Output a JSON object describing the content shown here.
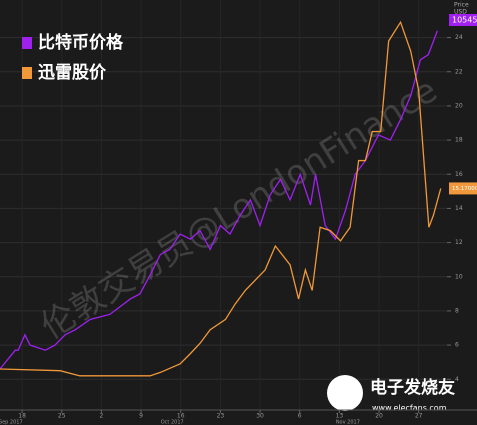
{
  "chart_data": {
    "type": "line",
    "y_axis_title": "Price",
    "y_axis_unit": "USD",
    "watermark": "伦敦交易员@LondonFinance",
    "logo_text": "电子发烧友",
    "logo_url": "www.elecfans.com",
    "legend_position": "top-left",
    "grid": true,
    "background": "#1b1b1b",
    "xlim": [
      14.1,
      93
    ],
    "ylim": [
      2.2,
      26.2
    ],
    "xticks": [
      {
        "value": 18,
        "label": "18"
      },
      {
        "value": 25,
        "label": "25"
      },
      {
        "value": 32,
        "label": "2"
      },
      {
        "value": 39,
        "label": "9"
      },
      {
        "value": 46,
        "label": "16"
      },
      {
        "value": 53,
        "label": "23"
      },
      {
        "value": 60,
        "label": "30"
      },
      {
        "value": 67,
        "label": "6"
      },
      {
        "value": 74,
        "label": "13"
      },
      {
        "value": 81,
        "label": "20"
      },
      {
        "value": 88,
        "label": "27"
      }
    ],
    "month_ticks": [
      {
        "value": 16,
        "label": "Sep 2017"
      },
      {
        "value": 44.5,
        "label": "Oct 2017"
      },
      {
        "value": 75.5,
        "label": "Nov 2017"
      }
    ],
    "yticks": [
      4,
      6,
      8,
      10,
      12,
      14,
      16,
      18,
      20,
      22,
      24
    ],
    "series": [
      {
        "name": "比特币价格",
        "color": "#a020f0",
        "end_label": "10545",
        "x": [
          14.1,
          16.8,
          17.3,
          18.5,
          19.4,
          22.1,
          23.8,
          25.6,
          27.4,
          30,
          33.5,
          37.1,
          38.8,
          40.6,
          42.4,
          44.1,
          45.9,
          47.7,
          49.4,
          51.2,
          53,
          54.7,
          56.5,
          58.3,
          60,
          61.8,
          63.6,
          65.3,
          67.1,
          68.9,
          69.8,
          71.5,
          73.3,
          75.1,
          76.8,
          78.6,
          80.9,
          83,
          84.8,
          86.6,
          88.3,
          89.7,
          91.3
        ],
        "values": [
          4.6,
          5.7,
          5.7,
          6.6,
          6.0,
          5.7,
          6.0,
          6.6,
          6.9,
          7.5,
          7.8,
          8.7,
          9.0,
          10.1,
          11.3,
          11.6,
          12.5,
          12.2,
          12.7,
          11.6,
          13.0,
          12.5,
          13.6,
          14.5,
          13.0,
          14.8,
          15.7,
          14.5,
          16.0,
          14.2,
          16.0,
          13.0,
          12.2,
          13.9,
          16.0,
          16.8,
          18.3,
          18.0,
          19.2,
          20.6,
          22.7,
          23.0,
          24.4
        ]
      },
      {
        "name": "迅雷股价",
        "color": "#f0983a",
        "end_label": "15.170000",
        "x": [
          14.1,
          24.7,
          28.2,
          40.6,
          42.4,
          45.9,
          47.7,
          49.4,
          51.2,
          53.9,
          55.6,
          57.4,
          60.9,
          62.7,
          65.3,
          66.8,
          68,
          69.2,
          70.6,
          72.4,
          74.2,
          75.9,
          77.4,
          78.6,
          79.8,
          81.3,
          82.7,
          84.8,
          86.6,
          88,
          89.8,
          90.6,
          91.9
        ],
        "values": [
          4.6,
          4.5,
          4.2,
          4.2,
          4.4,
          4.9,
          5.5,
          6.1,
          6.9,
          7.5,
          8.4,
          9.2,
          10.4,
          11.8,
          10.7,
          8.7,
          10.4,
          9.2,
          12.9,
          12.7,
          12.1,
          12.9,
          16.8,
          16.8,
          18.5,
          18.5,
          23.8,
          24.9,
          23.2,
          20.9,
          12.9,
          13.6,
          15.17
        ]
      }
    ]
  }
}
